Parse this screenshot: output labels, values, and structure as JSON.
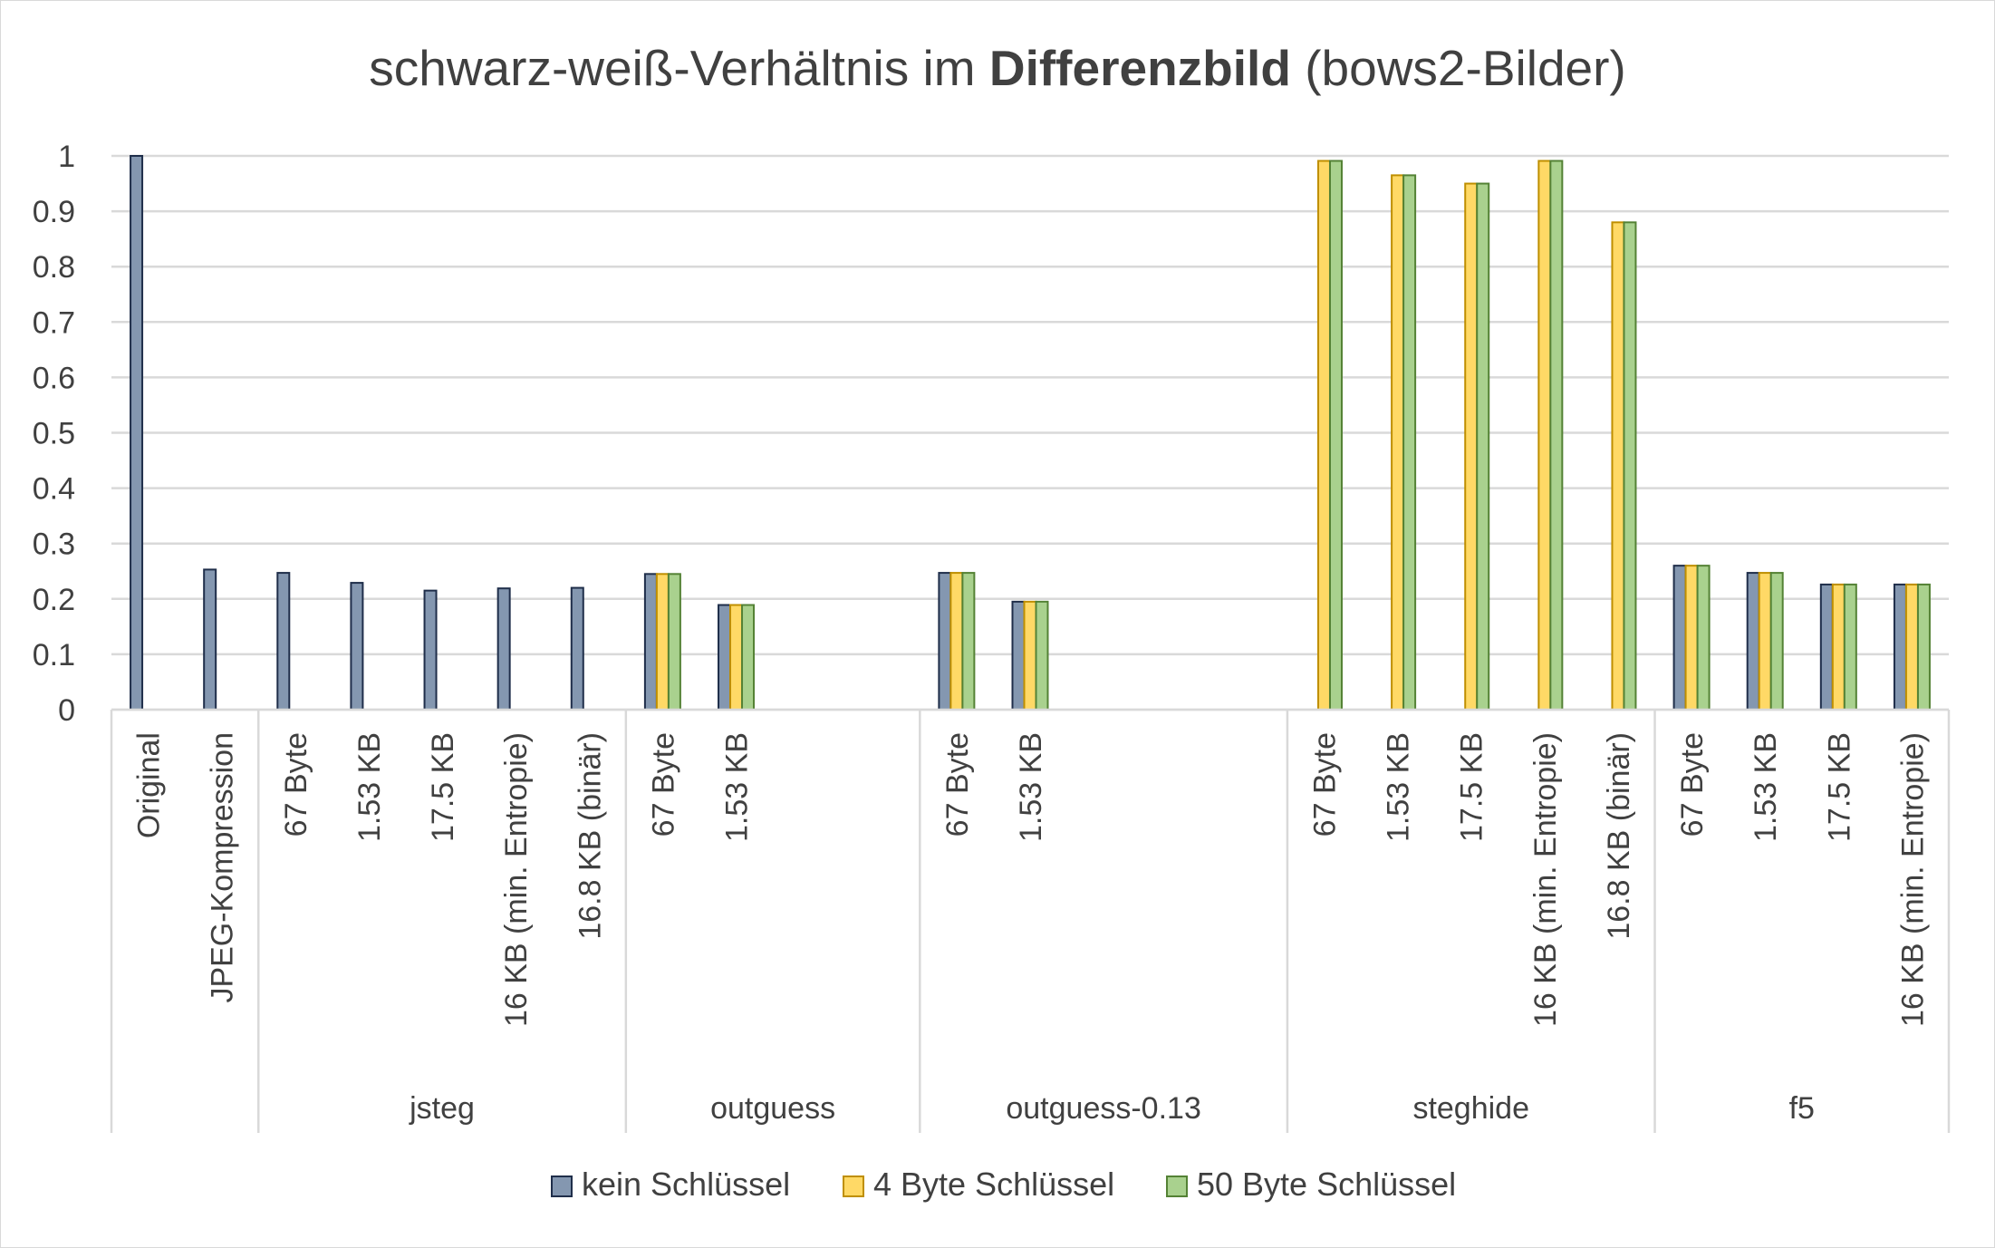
{
  "chart_data": {
    "type": "bar",
    "title": {
      "prefix": "schwarz-weiß-Verhältnis im ",
      "bold": "Differenzbild",
      "suffix": " (bows2-Bilder)"
    },
    "xlabel": "",
    "ylabel": "",
    "ylim": [
      0,
      1
    ],
    "yticks": [
      "0",
      "0.1",
      "0.2",
      "0.3",
      "0.4",
      "0.5",
      "0.6",
      "0.7",
      "0.8",
      "0.9",
      "1"
    ],
    "grid": true,
    "legend_position": "bottom",
    "groups": [
      {
        "name": "",
        "categories": [
          "Original",
          "JPEG-Kompression"
        ]
      },
      {
        "name": "jsteg",
        "categories": [
          "67 Byte",
          "1.53 KB",
          "17.5 KB",
          "16 KB (min. Entropie)",
          "16.8 KB (binär)"
        ]
      },
      {
        "name": "outguess",
        "categories": [
          "67 Byte",
          "1.53 KB",
          "",
          ""
        ]
      },
      {
        "name": "outguess-0.13",
        "categories": [
          "67 Byte",
          "1.53 KB",
          "",
          "",
          ""
        ]
      },
      {
        "name": "steghide",
        "categories": [
          "67 Byte",
          "1.53 KB",
          "17.5 KB",
          "16 KB (min. Entropie)",
          "16.8 KB (binär)"
        ]
      },
      {
        "name": "f5",
        "categories": [
          "67 Byte",
          "1.53 KB",
          "17.5 KB",
          "16 KB (min. Entropie)"
        ]
      }
    ],
    "series": [
      {
        "name": "kein Schlüssel",
        "color": "#8497b0",
        "values": [
          1.0,
          0.253,
          0.247,
          0.229,
          0.215,
          0.219,
          0.22,
          0.245,
          0.189,
          null,
          null,
          0.247,
          0.195,
          null,
          null,
          null,
          null,
          null,
          null,
          null,
          null,
          0.26,
          0.247,
          0.226,
          0.226
        ]
      },
      {
        "name": "4 Byte Schlüssel",
        "color": "#ffd966",
        "values": [
          null,
          null,
          null,
          null,
          null,
          null,
          null,
          0.245,
          0.189,
          null,
          null,
          0.247,
          0.195,
          null,
          null,
          null,
          0.991,
          0.965,
          0.95,
          0.991,
          0.88,
          0.26,
          0.247,
          0.226,
          0.226
        ]
      },
      {
        "name": "50 Byte Schlüssel",
        "color": "#a9d18e",
        "values": [
          null,
          null,
          null,
          null,
          null,
          null,
          null,
          0.245,
          0.189,
          null,
          null,
          0.247,
          0.195,
          null,
          null,
          null,
          0.991,
          0.965,
          0.95,
          0.991,
          0.88,
          0.26,
          0.247,
          0.226,
          0.226
        ]
      }
    ]
  },
  "colors": {
    "text": "#404040",
    "grid": "#d9d9d9",
    "bar_outline_series_1": "#1f2e4a",
    "bar_outline_series_2": "#bf8f00",
    "bar_outline_series_3": "#548235"
  }
}
